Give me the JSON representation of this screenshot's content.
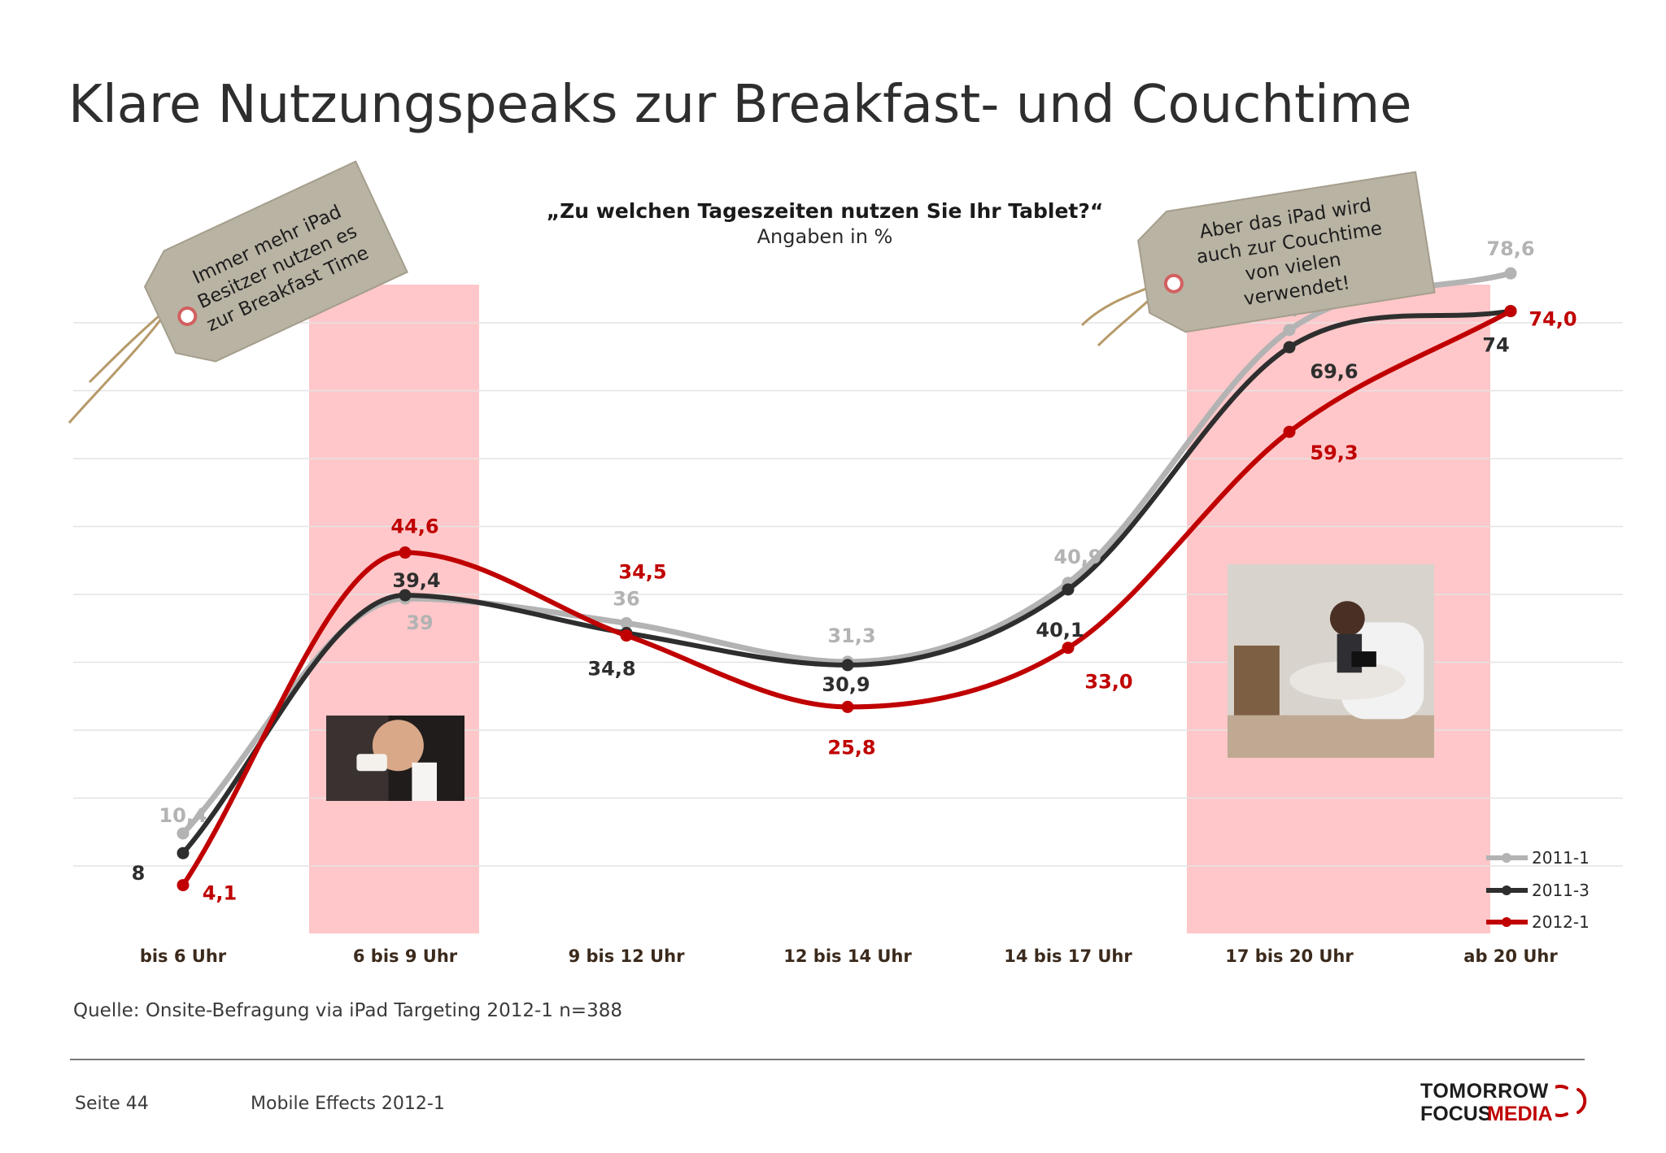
{
  "page": {
    "title": "Klare Nutzungspeaks zur Breakfast- und Couchtime",
    "source": "Quelle: Onsite-Befragung via iPad Targeting 2012-1 n=388",
    "page_number": "Seite 44",
    "report_name": "Mobile Effects 2012-1",
    "logo": {
      "line1": "TOMORROW",
      "line2a": "FOCUS",
      "line2b": "MEDIA"
    }
  },
  "tags": {
    "left": [
      "Immer mehr iPad",
      "Besitzer nutzen es",
      "zur Breakfast Time"
    ],
    "right": [
      "Aber das iPad wird",
      "auch zur Couchtime",
      "von vielen",
      "verwendet!"
    ]
  },
  "colors": {
    "s2011_1": "#b3b3b3",
    "s2011_3": "#2e2e2e",
    "s2012_1": "#c00000",
    "highlight": "#ffc7c9",
    "tag": "#b9b3a3"
  },
  "chart_data": {
    "type": "line",
    "title": "„Zu welchen Tageszeiten nutzen Sie Ihr Tablet?“",
    "subtitle": "Angaben in %",
    "xlabel": "",
    "ylabel": "",
    "ylim": [
      0,
      100
    ],
    "grid": true,
    "legend_position": "bottom-right",
    "categories": [
      "bis 6 Uhr",
      "6 bis 9 Uhr",
      "9 bis 12 Uhr",
      "12 bis 14 Uhr",
      "14 bis 17 Uhr",
      "17 bis 20 Uhr",
      "ab 20 Uhr"
    ],
    "highlighted_categories": [
      "6 bis 9 Uhr",
      "17 bis 20 Uhr"
    ],
    "series": [
      {
        "name": "2011-1",
        "values": [
          10.4,
          39,
          36,
          31.3,
          40.9,
          71.7,
          78.6
        ],
        "labels": [
          "10,4",
          "39",
          "36",
          "31,3",
          "40,9",
          "71,7",
          "78,6"
        ]
      },
      {
        "name": "2011-3",
        "values": [
          8,
          39.4,
          34.8,
          30.9,
          40.1,
          69.6,
          74
        ],
        "labels": [
          "8",
          "39,4",
          "34,8",
          "30,9",
          "40,1",
          "69,6",
          "74"
        ]
      },
      {
        "name": "2012-1",
        "values": [
          4.1,
          44.6,
          34.5,
          25.8,
          33.0,
          59.3,
          74.0
        ],
        "labels": [
          "4,1",
          "44,6",
          "34,5",
          "25,8",
          "33,0",
          "59,3",
          "74,0"
        ]
      }
    ]
  }
}
